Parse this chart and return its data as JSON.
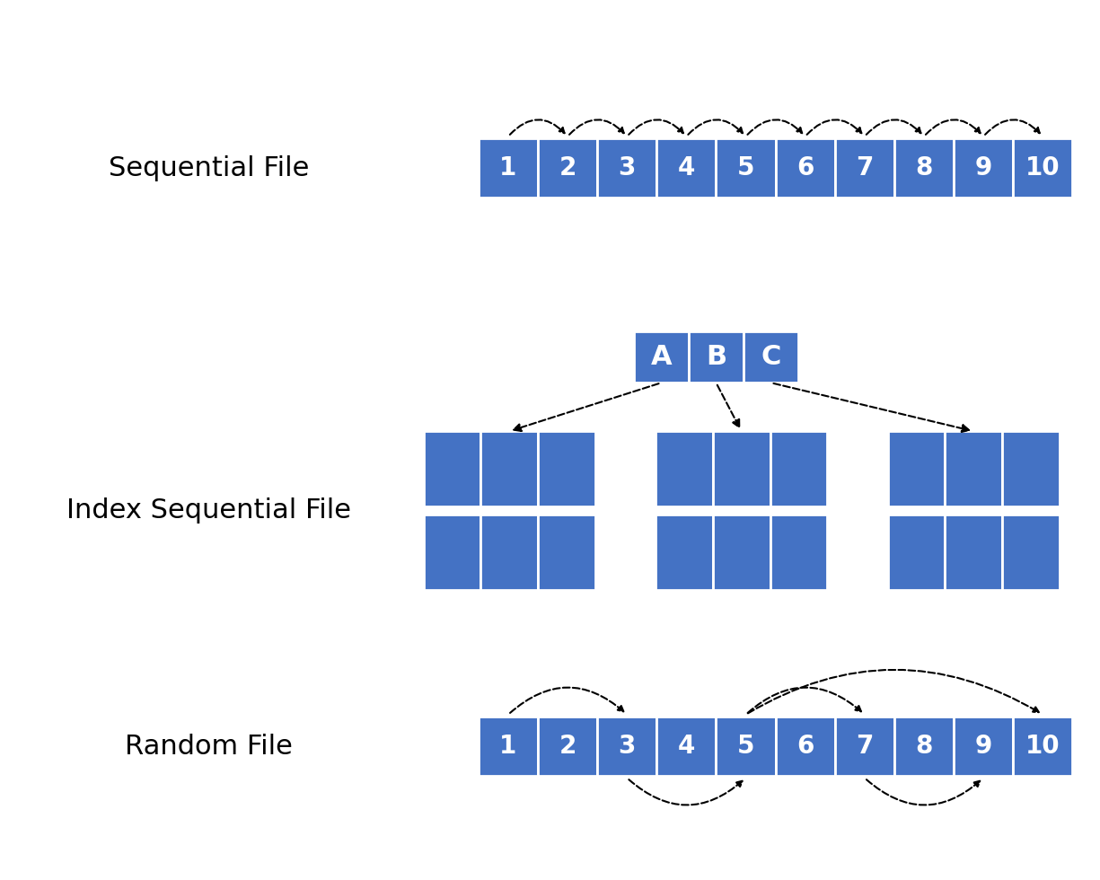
{
  "bg_color": "#ffffff",
  "box_color": "#4472c4",
  "box_text_color": "#ffffff",
  "label_color": "#000000",
  "arrow_color": "#000000",
  "seq_label": "Sequential File",
  "idx_label": "Index Sequential File",
  "rnd_label": "Random File",
  "seq_numbers": [
    "1",
    "2",
    "3",
    "4",
    "5",
    "6",
    "7",
    "8",
    "9",
    "10"
  ],
  "rnd_numbers": [
    "1",
    "2",
    "3",
    "4",
    "5",
    "6",
    "7",
    "8",
    "9",
    "10"
  ],
  "idx_index": [
    "A",
    "B",
    "C"
  ],
  "label_fontsize": 22,
  "num_fontsize": 20,
  "idx_fontsize": 22
}
